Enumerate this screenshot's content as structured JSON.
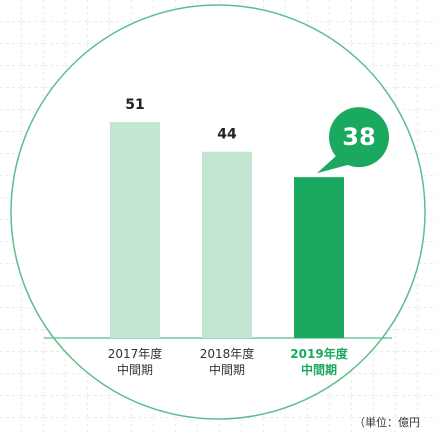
{
  "chart_data": {
    "type": "bar",
    "categories": [
      "2017年度\n中間期",
      "2018年度\n中間期",
      "2019年度\n中間期"
    ],
    "values": [
      51,
      44,
      38
    ],
    "color": "#c2e6d1",
    "highlight": 2,
    "highlight_color": "#1aa95e",
    "ylim": [
      0,
      60
    ],
    "unit_note": "（単位：億円"
  }
}
